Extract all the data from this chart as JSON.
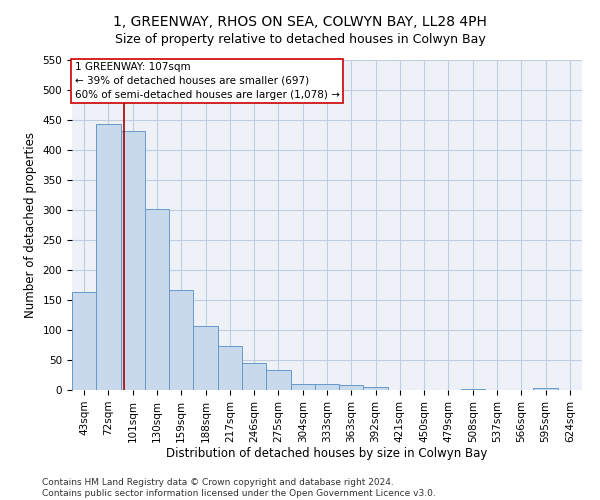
{
  "title": "1, GREENWAY, RHOS ON SEA, COLWYN BAY, LL28 4PH",
  "subtitle": "Size of property relative to detached houses in Colwyn Bay",
  "xlabel": "Distribution of detached houses by size in Colwyn Bay",
  "ylabel": "Number of detached properties",
  "categories": [
    "43sqm",
    "72sqm",
    "101sqm",
    "130sqm",
    "159sqm",
    "188sqm",
    "217sqm",
    "246sqm",
    "275sqm",
    "304sqm",
    "333sqm",
    "363sqm",
    "392sqm",
    "421sqm",
    "450sqm",
    "479sqm",
    "508sqm",
    "537sqm",
    "566sqm",
    "595sqm",
    "624sqm"
  ],
  "values": [
    163,
    444,
    432,
    301,
    167,
    106,
    74,
    45,
    33,
    10,
    10,
    8,
    5,
    0,
    0,
    0,
    2,
    0,
    0,
    4,
    0
  ],
  "bar_color": "#c8d9ec",
  "bar_edge_color": "#6699cc",
  "ylim": [
    0,
    550
  ],
  "yticks": [
    0,
    50,
    100,
    150,
    200,
    250,
    300,
    350,
    400,
    450,
    500,
    550
  ],
  "vline_x_index": 2,
  "vline_color": "#aa0000",
  "annotation_text": "1 GREENWAY: 107sqm\n← 39% of detached houses are smaller (697)\n60% of semi-detached houses are larger (1,078) →",
  "annotation_box_color": "#ffffff",
  "annotation_box_edge": "#cc0000",
  "footer": "Contains HM Land Registry data © Crown copyright and database right 2024.\nContains public sector information licensed under the Open Government Licence v3.0.",
  "bg_color": "#eef2f8",
  "grid_color": "#c0cce0",
  "title_fontsize": 10,
  "subtitle_fontsize": 9,
  "axis_label_fontsize": 8.5,
  "tick_fontsize": 7.5,
  "annotation_fontsize": 7.5,
  "footer_fontsize": 6.5
}
